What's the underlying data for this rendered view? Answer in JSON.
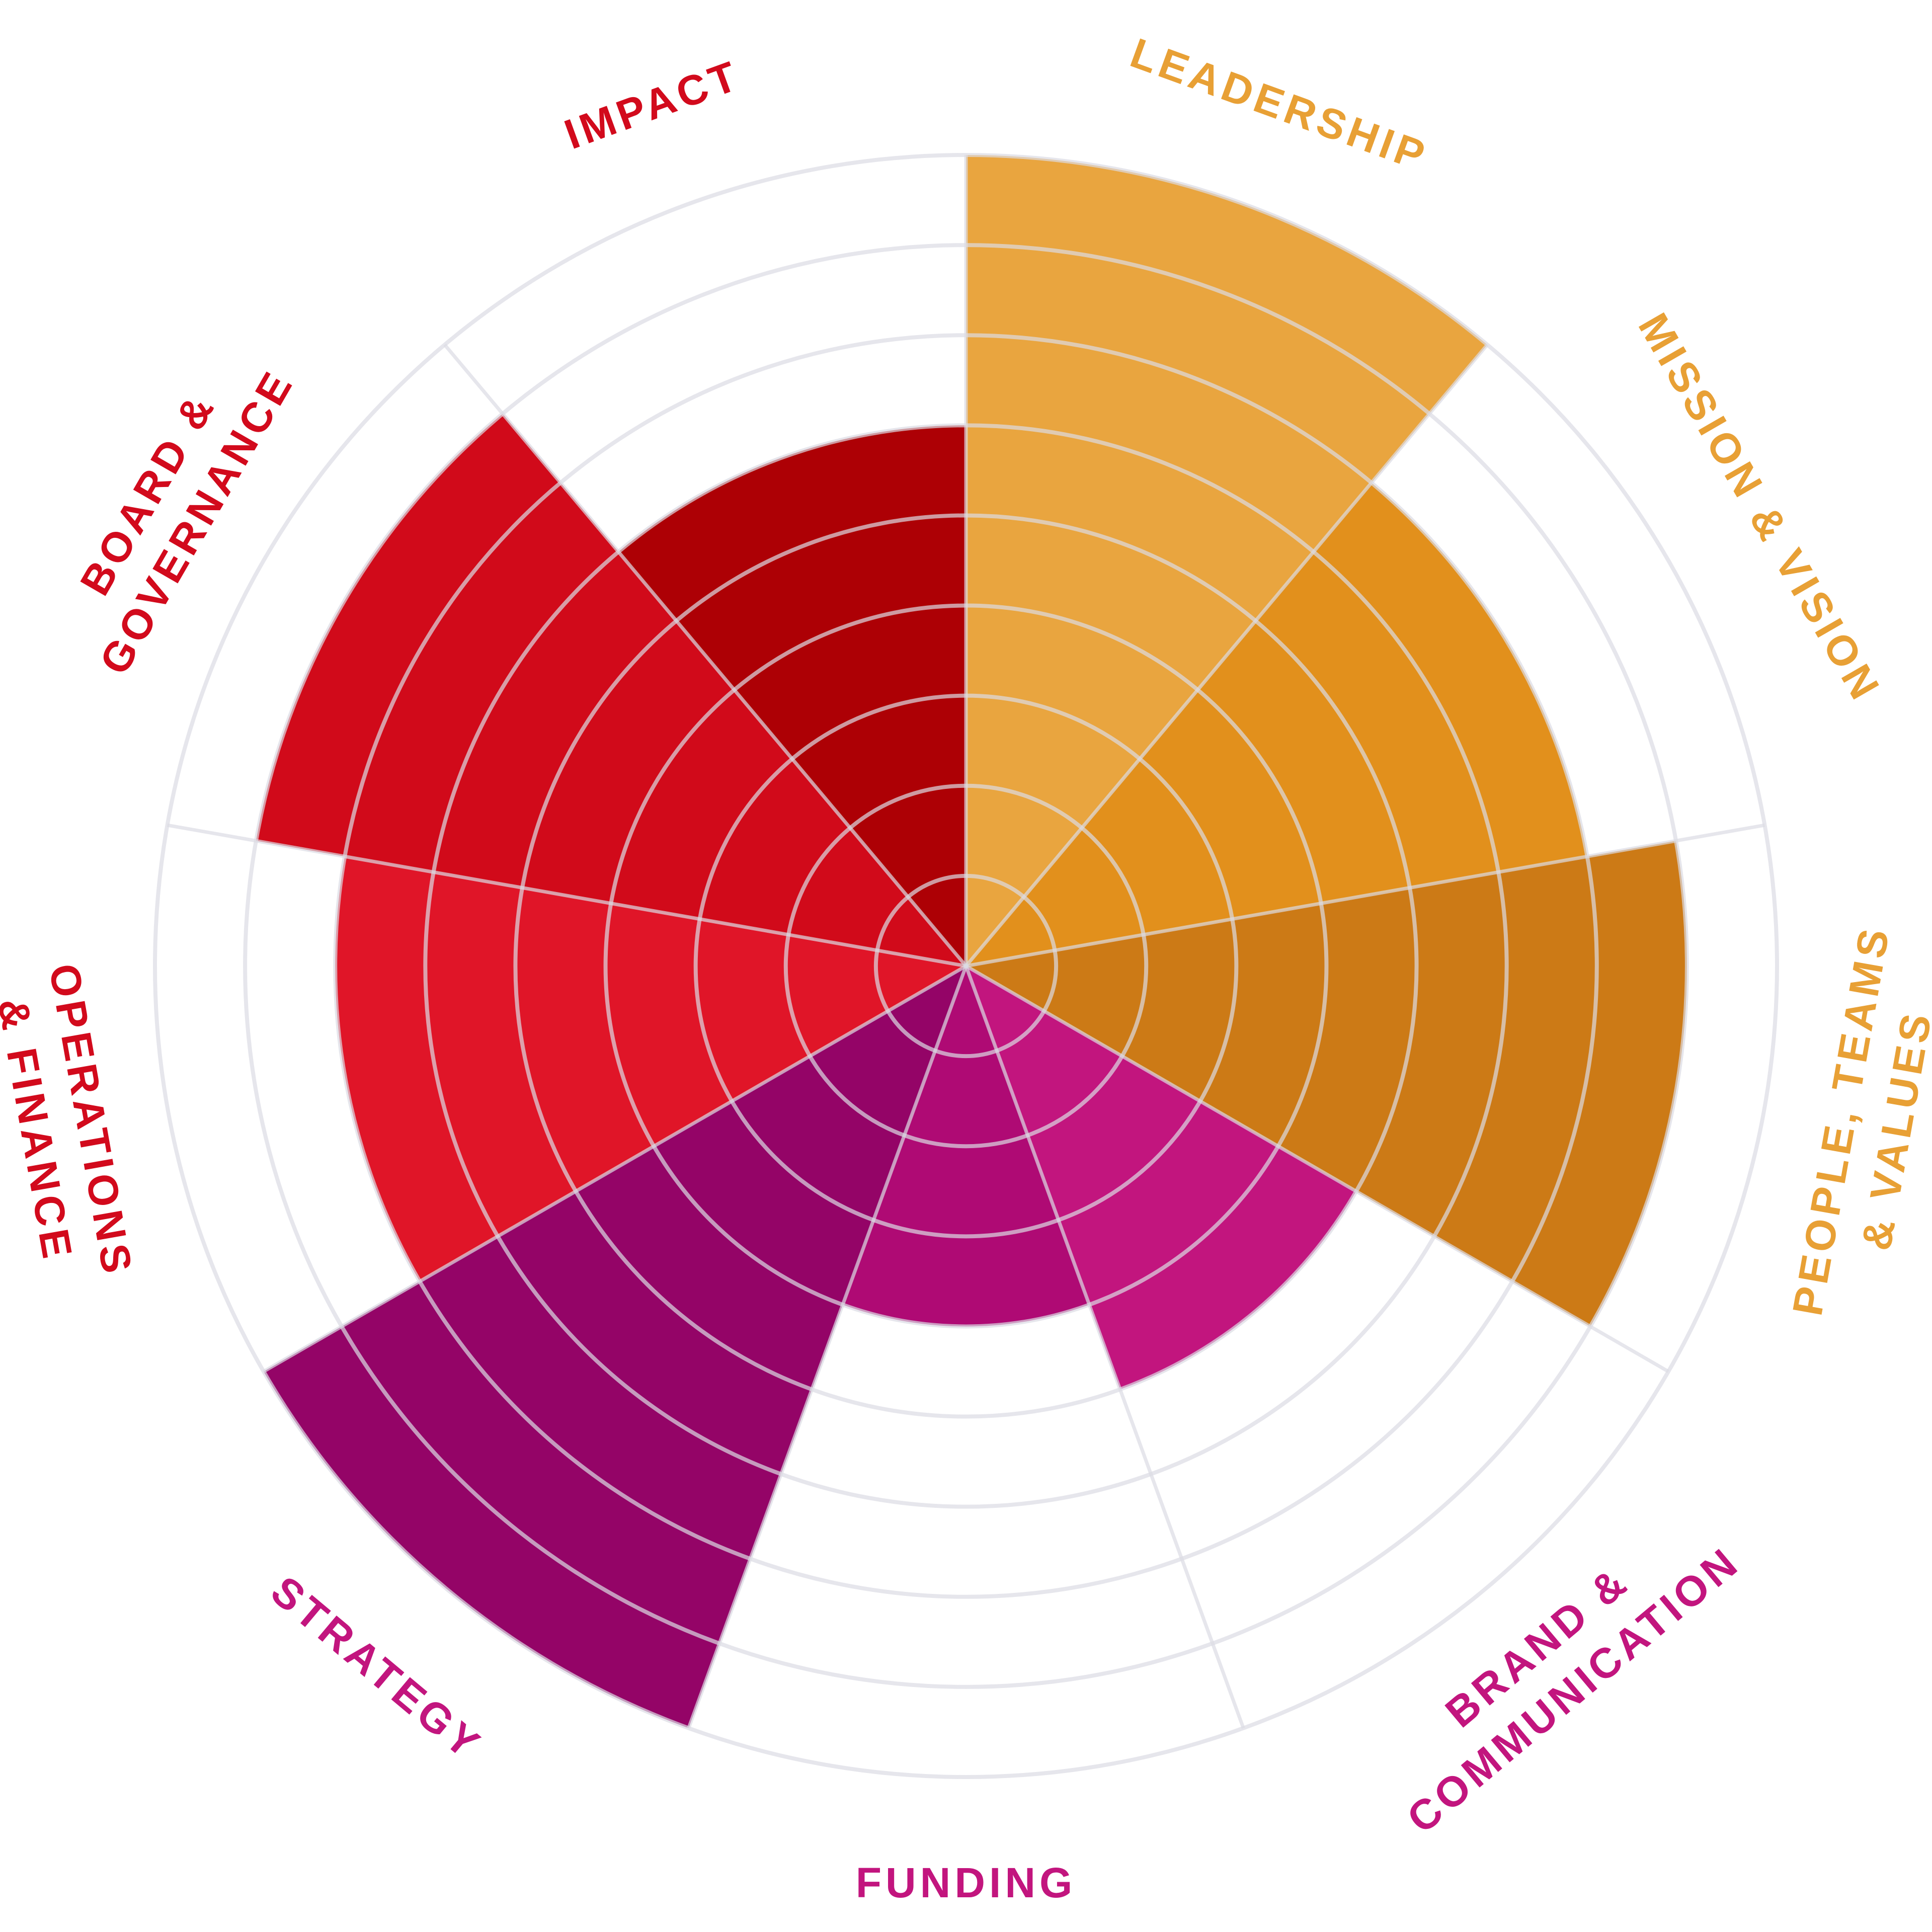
{
  "chart_data": {
    "type": "polar-area",
    "title": "",
    "rmax": 9,
    "rings": [
      1,
      2,
      3,
      4,
      5,
      6,
      7,
      8,
      9
    ],
    "grid": true,
    "categories": [
      {
        "key": "leadership",
        "label_lines": [
          "LEADERSHIP"
        ],
        "value": 9,
        "color": "#E8A035",
        "label_color": "#E8A035",
        "opacity": 0.95
      },
      {
        "key": "mission",
        "label_lines": [
          "MISSION & VISION"
        ],
        "value": 7,
        "color": "#E08A10",
        "label_color": "#E8A035",
        "opacity": 0.95
      },
      {
        "key": "people",
        "label_lines": [
          "PEOPLE, TEAMS",
          "& VALUES"
        ],
        "value": 8,
        "color": "#C9730A",
        "label_color": "#E8A035",
        "opacity": 0.95
      },
      {
        "key": "brand",
        "label_lines": [
          "BRAND &",
          "COMMUNICATION"
        ],
        "value": 5,
        "color": "#C2157E",
        "label_color": "#C2157E",
        "opacity": 1
      },
      {
        "key": "funding",
        "label_lines": [
          "FUNDING"
        ],
        "value": 4,
        "color": "#AF0A74",
        "label_color": "#C2157E",
        "opacity": 1
      },
      {
        "key": "strategy",
        "label_lines": [
          "STRATEGY"
        ],
        "value": 9,
        "color": "#940467",
        "label_color": "#C2157E",
        "opacity": 1
      },
      {
        "key": "operations",
        "label_lines": [
          "OPERATIONS",
          "& FINANCE"
        ],
        "value": 7,
        "color": "#E01528",
        "label_color": "#D20A1C",
        "opacity": 1
      },
      {
        "key": "board",
        "label_lines": [
          "BOARD &",
          "GOVERNANCE"
        ],
        "value": 8,
        "color": "#D10A1A",
        "label_color": "#D20A1C",
        "opacity": 1
      },
      {
        "key": "impact",
        "label_lines": [
          "IMPACT"
        ],
        "value": 6,
        "color": "#AD0005",
        "label_color": "#D20A1C",
        "opacity": 1
      }
    ],
    "colors": {
      "grid": "#DCDCE4"
    }
  }
}
